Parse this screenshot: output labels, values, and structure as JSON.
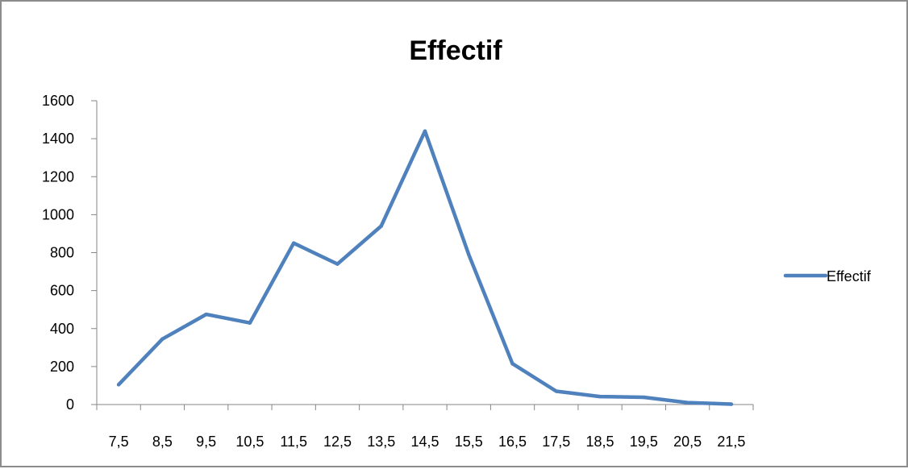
{
  "chart_data": {
    "type": "line",
    "title": "Effectif",
    "xlabel": "",
    "ylabel": "",
    "categories": [
      "7,5",
      "8,5",
      "9,5",
      "10,5",
      "11,5",
      "12,5",
      "13,5",
      "14,5",
      "15,5",
      "16,5",
      "17,5",
      "18,5",
      "19,5",
      "20,5",
      "21,5"
    ],
    "series": [
      {
        "name": "Effectif",
        "values": [
          105,
          345,
          475,
          430,
          850,
          740,
          940,
          1440,
          790,
          215,
          70,
          42,
          38,
          10,
          2
        ]
      }
    ],
    "ylim": [
      0,
      1600
    ],
    "yticks": [
      0,
      200,
      400,
      600,
      800,
      1000,
      1200,
      1400,
      1600
    ],
    "ytick_labels": [
      "0",
      "200",
      "400",
      "600",
      "800",
      "1000",
      "1200",
      "1400",
      "1600"
    ],
    "grid": false,
    "legend_position": "right",
    "colors": {
      "series": "#4f81bd",
      "axis": "#868686"
    }
  }
}
